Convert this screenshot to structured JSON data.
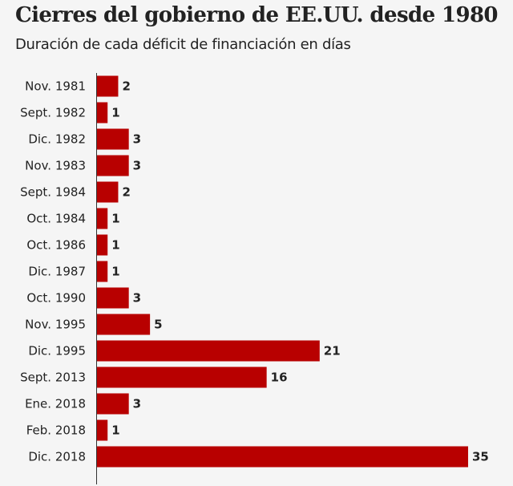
{
  "chart_data": {
    "type": "bar",
    "orientation": "horizontal",
    "title": "Cierres del gobierno de EE.UU. desde 1980",
    "subtitle": "Duración de cada déficit de financiación en días",
    "categories": [
      "Nov. 1981",
      "Sept. 1982",
      "Dic. 1982",
      "Nov. 1983",
      "Sept. 1984",
      "Oct. 1984",
      "Oct. 1986",
      "Dic. 1987",
      "Oct. 1990",
      "Nov. 1995",
      "Dic. 1995",
      "Sept. 2013",
      "Ene. 2018",
      "Feb. 2018",
      "Dic. 2018"
    ],
    "values": [
      2,
      1,
      3,
      3,
      2,
      1,
      1,
      1,
      3,
      5,
      21,
      16,
      3,
      1,
      35
    ],
    "xlim": [
      0,
      35
    ],
    "grid": false,
    "data_labels": true,
    "colors": {
      "bar": "#b80000",
      "background": "#f5f5f5",
      "text": "#222222"
    }
  }
}
